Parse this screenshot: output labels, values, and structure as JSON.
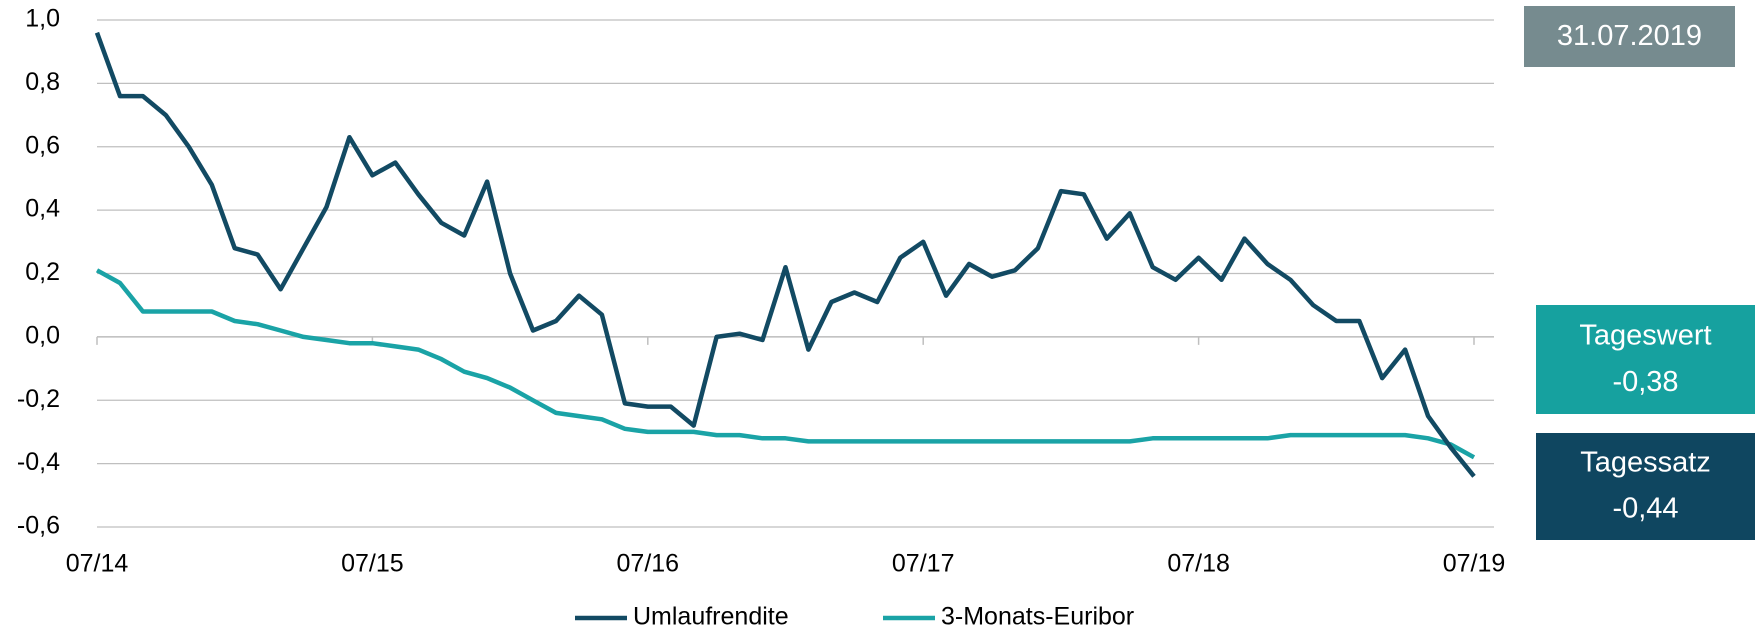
{
  "chart_data": {
    "type": "line",
    "categories": [
      "07/14",
      null,
      null,
      null,
      null,
      null,
      null,
      null,
      null,
      null,
      null,
      null,
      "07/15",
      null,
      null,
      null,
      null,
      null,
      null,
      null,
      null,
      null,
      null,
      null,
      "07/16",
      null,
      null,
      null,
      null,
      null,
      null,
      null,
      null,
      null,
      null,
      null,
      "07/17",
      null,
      null,
      null,
      null,
      null,
      null,
      null,
      null,
      null,
      null,
      null,
      "07/18",
      null,
      null,
      null,
      null,
      null,
      null,
      null,
      null,
      null,
      null,
      null,
      "07/19"
    ],
    "series": [
      {
        "name": "Umlaufrendite",
        "color": "#124a63",
        "values": [
          0.96,
          0.76,
          0.76,
          0.7,
          0.6,
          0.48,
          0.28,
          0.26,
          0.15,
          0.28,
          0.41,
          0.63,
          0.51,
          0.55,
          0.45,
          0.36,
          0.32,
          0.49,
          0.2,
          0.02,
          0.05,
          0.13,
          0.07,
          -0.21,
          -0.22,
          -0.22,
          -0.28,
          0.0,
          0.01,
          -0.01,
          0.22,
          -0.04,
          0.11,
          0.14,
          0.11,
          0.25,
          0.3,
          0.13,
          0.23,
          0.19,
          0.21,
          0.28,
          0.46,
          0.45,
          0.31,
          0.39,
          0.22,
          0.18,
          0.25,
          0.18,
          0.31,
          0.23,
          0.18,
          0.1,
          0.05,
          0.05,
          -0.13,
          -0.04,
          -0.25,
          -0.35,
          -0.44
        ]
      },
      {
        "name": "3-Monats-Euribor",
        "color": "#1aa3a6",
        "values": [
          0.21,
          0.17,
          0.08,
          0.08,
          0.08,
          0.08,
          0.05,
          0.04,
          0.02,
          0.0,
          -0.01,
          -0.02,
          -0.02,
          -0.03,
          -0.04,
          -0.07,
          -0.11,
          -0.13,
          -0.16,
          -0.2,
          -0.24,
          -0.25,
          -0.26,
          -0.29,
          -0.3,
          -0.3,
          -0.3,
          -0.31,
          -0.31,
          -0.32,
          -0.32,
          -0.33,
          -0.33,
          -0.33,
          -0.33,
          -0.33,
          -0.33,
          -0.33,
          -0.33,
          -0.33,
          -0.33,
          -0.33,
          -0.33,
          -0.33,
          -0.33,
          -0.33,
          -0.32,
          -0.32,
          -0.32,
          -0.32,
          -0.32,
          -0.32,
          -0.31,
          -0.31,
          -0.31,
          -0.31,
          -0.31,
          -0.31,
          -0.32,
          -0.34,
          -0.38
        ]
      }
    ],
    "ylim": [
      -0.6,
      1.0
    ],
    "yticks": [
      {
        "value": -0.6,
        "label": "-0,6"
      },
      {
        "value": -0.4,
        "label": "-0,4"
      },
      {
        "value": -0.2,
        "label": "-0,2"
      },
      {
        "value": 0,
        "label": "0,0"
      },
      {
        "value": 0.2,
        "label": "0,2"
      },
      {
        "value": 0.4,
        "label": "0,4"
      },
      {
        "value": 0.6,
        "label": "0,6"
      },
      {
        "value": 0.8,
        "label": "0,8"
      },
      {
        "value": 1.0,
        "label": "1,0"
      }
    ],
    "grid": true,
    "legend": "bottom",
    "annotations": [
      {
        "text": "31.07.2019",
        "color": "#768b8f"
      },
      {
        "text": "Tageswert",
        "value": "-0,38",
        "color": "#16a19f"
      },
      {
        "text": "Tagessatz",
        "value": "-0,44",
        "color": "#0f4660"
      }
    ]
  }
}
